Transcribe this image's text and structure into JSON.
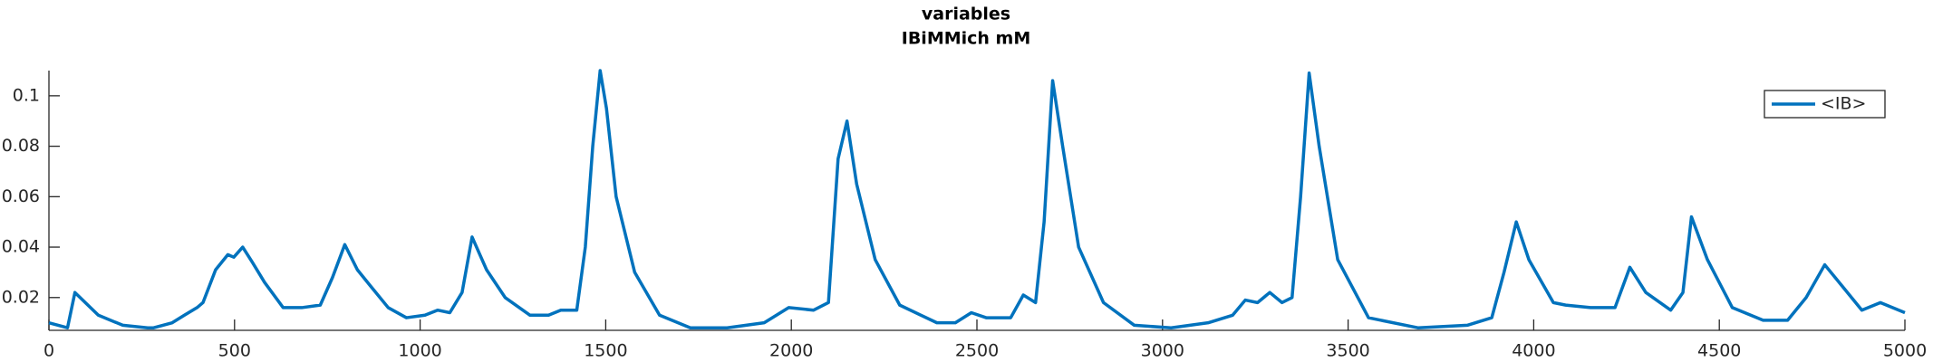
{
  "chart_data": {
    "type": "line",
    "title": "variables",
    "subtitle": "IBiMMich mM",
    "legend": "northeast",
    "xlim": [
      0,
      5000
    ],
    "xticks": [
      0,
      500,
      1000,
      1500,
      2000,
      2500,
      3000,
      3500,
      4000,
      4500,
      5000
    ],
    "ylim": [
      0.007,
      0.11
    ],
    "yticks": [
      0.02,
      0.04,
      0.06,
      0.08,
      0.1
    ],
    "x": [
      0,
      50,
      70,
      133,
      199,
      266,
      282,
      332,
      365,
      399,
      415,
      449,
      482,
      498,
      522,
      548,
      581,
      631,
      681,
      731,
      764,
      797,
      831,
      864,
      914,
      963,
      1013,
      1047,
      1080,
      1113,
      1140,
      1179,
      1229,
      1296,
      1346,
      1379,
      1422,
      1445,
      1465,
      1485,
      1502,
      1528,
      1578,
      1645,
      1728,
      1827,
      1927,
      1993,
      2060,
      2100,
      2126,
      2150,
      2176,
      2226,
      2292,
      2392,
      2442,
      2485,
      2525,
      2591,
      2625,
      2658,
      2681,
      2704,
      2731,
      2774,
      2841,
      2924,
      3023,
      3123,
      3189,
      3223,
      3256,
      3289,
      3322,
      3349,
      3372,
      3395,
      3422,
      3472,
      3555,
      3688,
      3821,
      3887,
      3920,
      3953,
      3987,
      4053,
      4086,
      4153,
      4219,
      4259,
      4302,
      4369,
      4402,
      4425,
      4468,
      4535,
      4618,
      4684,
      4734,
      4784,
      4834,
      4884,
      4934,
      5000
    ],
    "series": [
      {
        "name": "<IB>",
        "color": "#0072bd",
        "values": [
          0.01,
          0.008,
          0.022,
          0.013,
          0.009,
          0.008,
          0.008,
          0.01,
          0.013,
          0.016,
          0.018,
          0.031,
          0.037,
          0.036,
          0.04,
          0.034,
          0.026,
          0.016,
          0.016,
          0.017,
          0.028,
          0.041,
          0.031,
          0.025,
          0.016,
          0.012,
          0.013,
          0.015,
          0.014,
          0.022,
          0.044,
          0.031,
          0.02,
          0.013,
          0.013,
          0.015,
          0.015,
          0.04,
          0.08,
          0.11,
          0.095,
          0.06,
          0.03,
          0.013,
          0.008,
          0.008,
          0.01,
          0.016,
          0.015,
          0.018,
          0.075,
          0.09,
          0.065,
          0.035,
          0.017,
          0.01,
          0.01,
          0.014,
          0.012,
          0.012,
          0.021,
          0.018,
          0.05,
          0.106,
          0.08,
          0.04,
          0.018,
          0.009,
          0.008,
          0.01,
          0.013,
          0.019,
          0.018,
          0.022,
          0.018,
          0.02,
          0.06,
          0.109,
          0.08,
          0.035,
          0.012,
          0.008,
          0.009,
          0.012,
          0.03,
          0.05,
          0.035,
          0.018,
          0.017,
          0.016,
          0.016,
          0.032,
          0.022,
          0.015,
          0.022,
          0.052,
          0.035,
          0.016,
          0.011,
          0.011,
          0.02,
          0.033,
          0.024,
          0.015,
          0.018,
          0.014
        ]
      }
    ]
  }
}
